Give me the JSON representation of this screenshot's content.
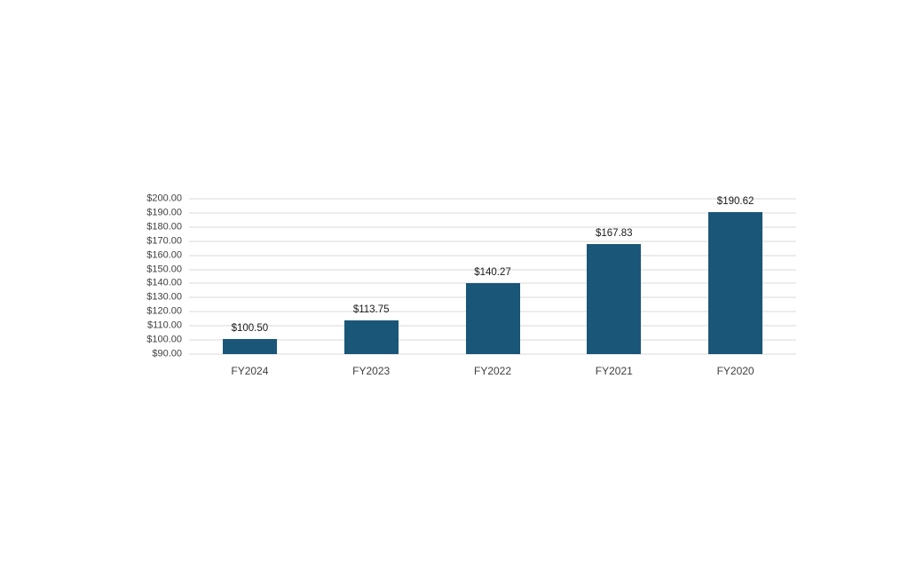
{
  "chart_data": {
    "type": "bar",
    "title": "",
    "xlabel": "",
    "ylabel": "",
    "categories": [
      "FY2024",
      "FY2023",
      "FY2022",
      "FY2021",
      "FY2020"
    ],
    "values": [
      100.5,
      113.75,
      140.27,
      167.83,
      190.62
    ],
    "data_labels": [
      "$100.50",
      "$113.75",
      "$140.27",
      "$167.83",
      "$190.62"
    ],
    "ylim": [
      90,
      200
    ],
    "ytick_step": 10,
    "ytick_labels": [
      "$90.00",
      "$100.00",
      "$110.00",
      "$120.00",
      "$130.00",
      "$140.00",
      "$150.00",
      "$160.00",
      "$170.00",
      "$180.00",
      "$190.00",
      "$200.00"
    ],
    "grid": true,
    "legend": false,
    "colors": {
      "bar": "#1A5678",
      "gridline": "#D9D9D9",
      "axis_text": "#3F3F3F",
      "data_label_text": "#1A1A1A"
    }
  }
}
